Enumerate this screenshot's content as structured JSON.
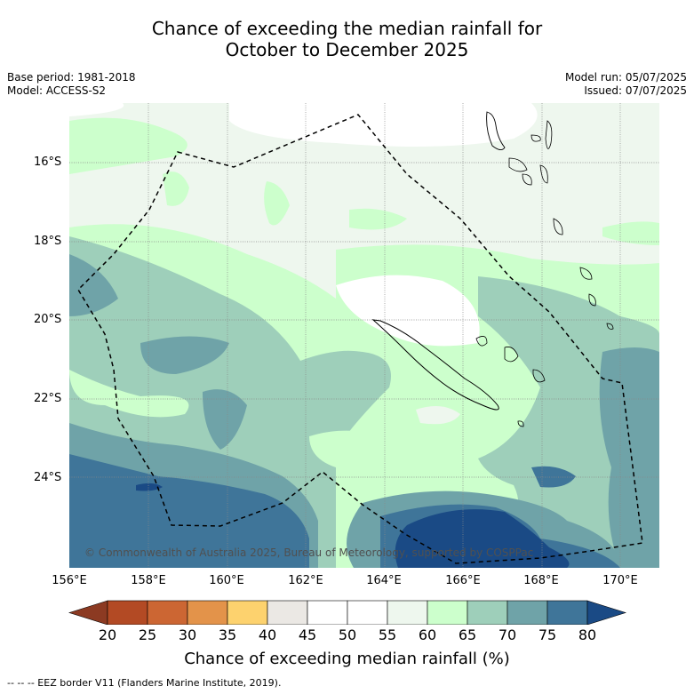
{
  "title_line1": "Chance of exceeding the median rainfall for",
  "title_line2": "October to December 2025",
  "base_period": "Base period: 1981-2018",
  "model": "Model: ACCESS-S2",
  "model_run": "Model run: 05/07/2025",
  "issued": "Issued: 07/07/2025",
  "lat_labels": [
    "16°S",
    "18°S",
    "20°S",
    "22°S",
    "24°S"
  ],
  "lon_labels": [
    "156°E",
    "158°E",
    "160°E",
    "162°E",
    "164°E",
    "166°E",
    "168°E",
    "170°E"
  ],
  "copyright": "© Commonwealth of Australia 2025, Bureau of Meteorology, supported by COSPPac",
  "colorbar": {
    "ticks": [
      "20",
      "25",
      "30",
      "35",
      "40",
      "45",
      "50",
      "55",
      "60",
      "65",
      "70",
      "75",
      "80"
    ],
    "colors": [
      "#b34a24",
      "#cc6633",
      "#e3934a",
      "#fdd26e",
      "#ebe8e4",
      "#ffffff",
      "#ffffff",
      "#eef7ee",
      "#ccffcc",
      "#9ecfba",
      "#6fa3a8",
      "#3f7599"
    ],
    "under_color": "#8c3a22",
    "over_color": "#1a4a85",
    "label": "Chance of exceeding median rainfall (%)"
  },
  "footnote": "-- -- -- EEZ border V11 (Flanders Marine Institute, 2019)."
}
